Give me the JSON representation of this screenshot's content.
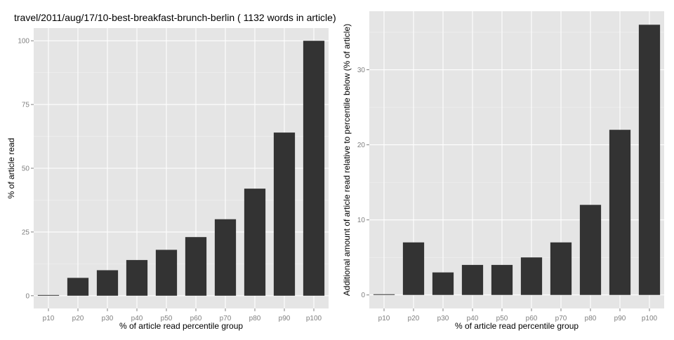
{
  "colors": {
    "panel_background": "#e5e5e5",
    "grid_major": "#ffffff",
    "grid_minor": "#f2f2f2",
    "bar_fill": "#333333",
    "tick_text": "#7f7f7f",
    "tick_mark": "#7f7f7f"
  },
  "chart_data": [
    {
      "type": "bar",
      "title": "travel/2011/aug/17/10-best-breakfast-brunch-berlin ( 1132 words in article)",
      "xlabel": "% of article read percentile group",
      "ylabel": "% of article read",
      "categories": [
        "p10",
        "p20",
        "p30",
        "p40",
        "p50",
        "p60",
        "p70",
        "p80",
        "p90",
        "p100"
      ],
      "values": [
        0,
        7,
        10,
        14,
        18,
        23,
        30,
        42,
        64,
        100
      ],
      "yticks": [
        0,
        25,
        50,
        75,
        100
      ],
      "ylim": [
        -5,
        105
      ],
      "grid": true,
      "legend": "none"
    },
    {
      "type": "bar",
      "title": "",
      "xlabel": "% of article read percentile group",
      "ylabel": "Additional amount of article read relative to percentile below (% of article)",
      "categories": [
        "p10",
        "p20",
        "p30",
        "p40",
        "p50",
        "p60",
        "p70",
        "p80",
        "p90",
        "p100"
      ],
      "values": [
        0,
        7,
        3,
        4,
        4,
        5,
        7,
        12,
        22,
        36
      ],
      "yticks": [
        0,
        10,
        20,
        30
      ],
      "ylim": [
        -1.8,
        37.8
      ],
      "grid": true,
      "legend": "none"
    }
  ]
}
